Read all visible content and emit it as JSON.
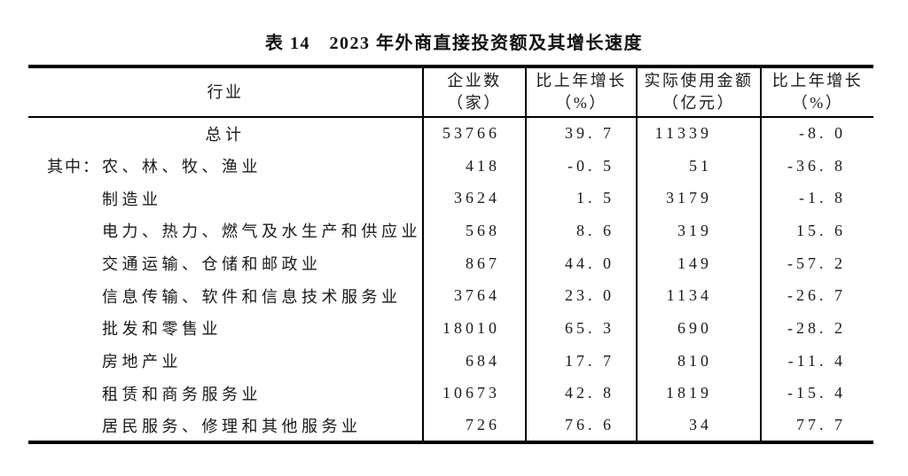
{
  "page": {
    "title": "表 14　2023 年外商直接投资额及其增长速度"
  },
  "table": {
    "headers": [
      {
        "line1": "行业",
        "line2": ""
      },
      {
        "line1": "企业数",
        "line2": "（家）"
      },
      {
        "line1": "比上年增长",
        "line2": "（%）"
      },
      {
        "line1": "实际使用金额",
        "line2": "（亿元）"
      },
      {
        "line1": "比上年增长",
        "line2": "（%）"
      }
    ],
    "rows": [
      {
        "prefix": "",
        "industry": "总计",
        "enterprises": "53766",
        "enterprises_growth": "39. 7",
        "amount": "11339",
        "amount_growth": "-8. 0"
      },
      {
        "prefix": "其中：",
        "industry": "农、林、牧、渔业",
        "enterprises": "418",
        "enterprises_growth": "-0. 5",
        "amount": "51",
        "amount_growth": "-36. 8"
      },
      {
        "prefix": "",
        "industry": "制造业",
        "enterprises": "3624",
        "enterprises_growth": "1. 5",
        "amount": "3179",
        "amount_growth": "-1. 8"
      },
      {
        "prefix": "",
        "industry": "电力、热力、燃气及水生产和供应业",
        "enterprises": "568",
        "enterprises_growth": "8. 6",
        "amount": "319",
        "amount_growth": "15. 6"
      },
      {
        "prefix": "",
        "industry": "交通运输、仓储和邮政业",
        "enterprises": "867",
        "enterprises_growth": "44. 0",
        "amount": "149",
        "amount_growth": "-57. 2"
      },
      {
        "prefix": "",
        "industry": "信息传输、软件和信息技术服务业",
        "enterprises": "3764",
        "enterprises_growth": "23. 0",
        "amount": "1134",
        "amount_growth": "-26. 7"
      },
      {
        "prefix": "",
        "industry": "批发和零售业",
        "enterprises": "18010",
        "enterprises_growth": "65. 3",
        "amount": "690",
        "amount_growth": "-28. 2"
      },
      {
        "prefix": "",
        "industry": "房地产业",
        "enterprises": "684",
        "enterprises_growth": "17. 7",
        "amount": "810",
        "amount_growth": "-11. 4"
      },
      {
        "prefix": "",
        "industry": "租赁和商务服务业",
        "enterprises": "10673",
        "enterprises_growth": "42. 8",
        "amount": "1819",
        "amount_growth": "-15. 4"
      },
      {
        "prefix": "",
        "industry": "居民服务、修理和其他服务业",
        "enterprises": "726",
        "enterprises_growth": "76. 6",
        "amount": "34",
        "amount_growth": "77. 7"
      }
    ]
  }
}
